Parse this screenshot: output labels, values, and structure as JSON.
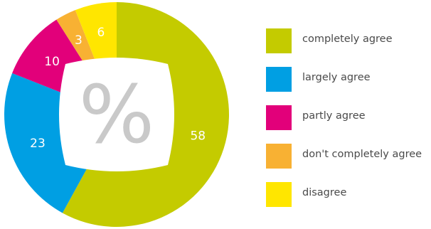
{
  "chart_data": {
    "type": "pie",
    "donut": true,
    "center_symbol": "%",
    "legend_position": "right",
    "slices": [
      {
        "label": "completely agree",
        "value": 58,
        "color": "#c4cb00"
      },
      {
        "label": "largely agree",
        "value": 23,
        "color": "#009fe3"
      },
      {
        "label": "partly agree",
        "value": 10,
        "color": "#e2007a"
      },
      {
        "label": "don't completely agree",
        "value": 3,
        "color": "#f8b133"
      },
      {
        "label": "disagree",
        "value": 6,
        "color": "#ffe600"
      }
    ]
  }
}
